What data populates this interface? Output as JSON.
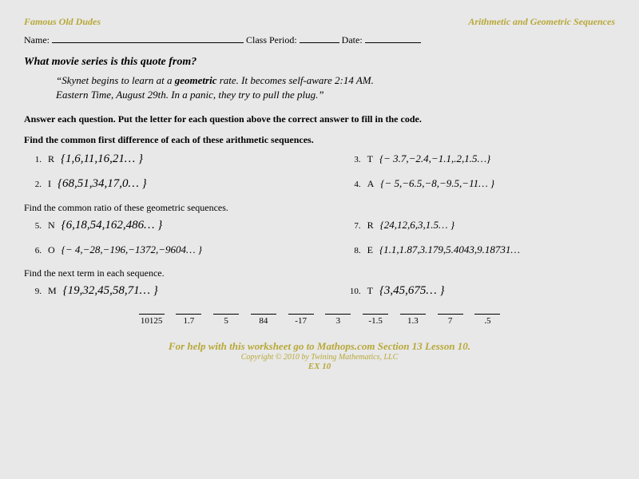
{
  "header": {
    "left": "Famous Old Dudes",
    "right": "Arithmetic and Geometric Sequences"
  },
  "nameRow": {
    "name": "Name:",
    "period": "Class Period:",
    "date": "Date:"
  },
  "questionTitle": "What movie series is this quote from?",
  "quote": {
    "line1": "“Skynet begins to learn at a ",
    "bold1": "geometric",
    "line1b": " rate. It becomes self-aware 2:14 AM.",
    "line2": "Eastern Time, August 29th. In a panic, they try to pull the plug.”"
  },
  "instructions": "Answer each question.  Put the letter for each question above the correct answer to fill in the code.",
  "section1": "Find the common first difference of each of these arithmetic sequences.",
  "section2": "Find the common ratio of these geometric sequences.",
  "section3": "Find the next term in each sequence.",
  "problems": {
    "p1": {
      "num": "1.",
      "letter": "R",
      "seq": "{1,6,11,16,21… }"
    },
    "p2": {
      "num": "2.",
      "letter": "I",
      "seq": "{68,51,34,17,0… }"
    },
    "p3": {
      "num": "3.",
      "letter": "T",
      "seq": "{− 3.7,−2.4,−1.1,.2,1.5…}"
    },
    "p4": {
      "num": "4.",
      "letter": "A",
      "seq": "{− 5,−6.5,−8,−9.5,−11… }"
    },
    "p5": {
      "num": "5.",
      "letter": "N",
      "seq": "{6,18,54,162,486… }"
    },
    "p6": {
      "num": "6.",
      "letter": "O",
      "seq": "{− 4,−28,−196,−1372,−9604… }"
    },
    "p7": {
      "num": "7.",
      "letter": "R",
      "seq": "{24,12,6,3,1.5… }"
    },
    "p8": {
      "num": "8.",
      "letter": "E",
      "seq": "{1.1,1.87,3.179,5.4043,9.18731…"
    },
    "p9": {
      "num": "9.",
      "letter": "M",
      "seq": "{19,32,45,58,71… }"
    },
    "p10": {
      "num": "10.",
      "letter": "T",
      "seq": "{3,45,675… }"
    }
  },
  "answers": [
    "10125",
    "1.7",
    "5",
    "84",
    "-17",
    "3",
    "-1.5",
    "1.3",
    "7",
    ".5"
  ],
  "footer": {
    "main": "For help with this worksheet go to Mathops.com Section 13 Lesson 10.",
    "copy": "Copyright © 2010 by Twining Mathematics, LLC",
    "ex": "EX 10"
  }
}
